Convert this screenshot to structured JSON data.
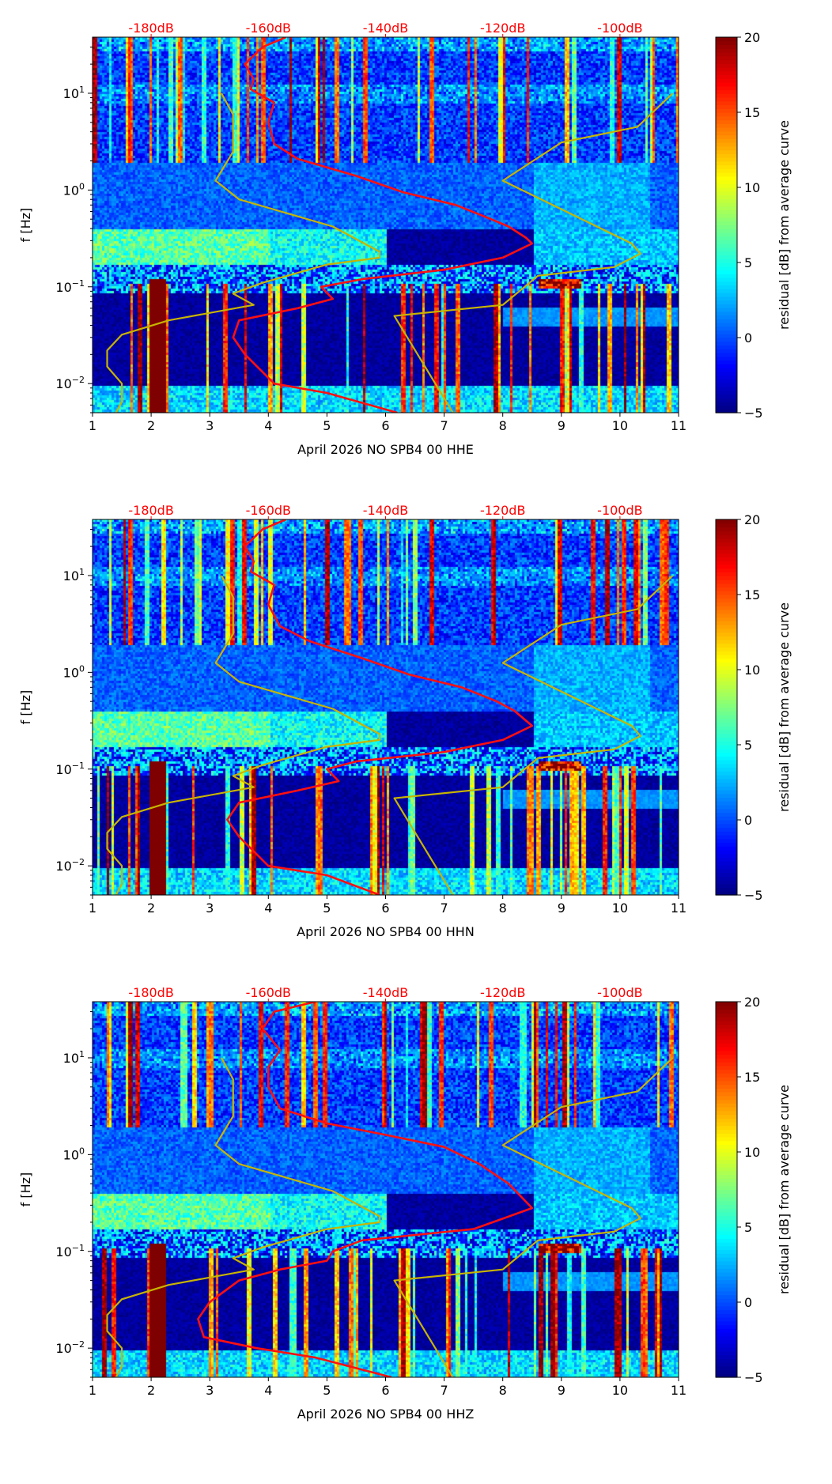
{
  "chart_data": [
    {
      "type": "heatmap",
      "xlabel": "April 2026 NO SPB4 00 HHE",
      "ylabel": "f [Hz]",
      "xlim": [
        1,
        11
      ],
      "ylim": [
        0.005,
        38
      ],
      "yscale": "log",
      "xticks": [
        1,
        2,
        3,
        4,
        5,
        6,
        7,
        8,
        9,
        10,
        11
      ],
      "xtick_labels": [
        "1",
        "2",
        "3",
        "4",
        "5",
        "6",
        "7",
        "8",
        "9",
        "10",
        "11"
      ],
      "yticks": [
        0.01,
        0.1,
        1,
        10
      ],
      "ytick_labels": [
        {
          "base": "10",
          "exp": "−2"
        },
        {
          "base": "10",
          "exp": "−1"
        },
        {
          "base": "10",
          "exp": "0"
        },
        {
          "base": "10",
          "exp": "1"
        }
      ],
      "top_axis": {
        "ticks": [
          2,
          4,
          6,
          8,
          10
        ],
        "labels": [
          "-180dB",
          "-160dB",
          "-140dB",
          "-120dB",
          "-100dB"
        ],
        "color": "#ff0000"
      },
      "colorbar": {
        "range": [
          -5,
          20
        ],
        "ticks": [
          -5,
          0,
          5,
          10,
          15,
          20
        ],
        "tick_labels": [
          "−5",
          "0",
          "5",
          "10",
          "15",
          "20"
        ],
        "label": "residual [dB] from average curve",
        "colormap": "jet"
      },
      "lines": {
        "red": {
          "color": "#ff1010",
          "points": [
            [
              4.3,
              38
            ],
            [
              3.9,
              30
            ],
            [
              3.6,
              20
            ],
            [
              3.75,
              14
            ],
            [
              3.7,
              11
            ],
            [
              4.1,
              8
            ],
            [
              4.0,
              5
            ],
            [
              4.1,
              3
            ],
            [
              4.5,
              2.1
            ],
            [
              5.5,
              1.4
            ],
            [
              6.3,
              0.95
            ],
            [
              7.2,
              0.7
            ],
            [
              7.8,
              0.5
            ],
            [
              8.1,
              0.42
            ],
            [
              8.4,
              0.32
            ],
            [
              8.5,
              0.28
            ],
            [
              8.0,
              0.2
            ],
            [
              7.0,
              0.15
            ],
            [
              5.6,
              0.12
            ],
            [
              4.9,
              0.1
            ],
            [
              5.1,
              0.075
            ],
            [
              4.5,
              0.06
            ],
            [
              3.5,
              0.045
            ],
            [
              3.4,
              0.03
            ],
            [
              3.6,
              0.02
            ],
            [
              4.1,
              0.01
            ],
            [
              5.0,
              0.008
            ],
            [
              6.2,
              0.005
            ]
          ]
        },
        "yellow_low": {
          "color": "#c8b400",
          "points": [
            [
              3.2,
              10
            ],
            [
              3.4,
              6
            ],
            [
              3.4,
              2.5
            ],
            [
              3.1,
              1.25
            ],
            [
              3.5,
              0.8
            ],
            [
              5.1,
              0.42
            ],
            [
              5.9,
              0.23
            ],
            [
              5.9,
              0.2
            ],
            [
              5.0,
              0.17
            ],
            [
              3.9,
              0.11
            ],
            [
              3.4,
              0.085
            ],
            [
              3.75,
              0.065
            ],
            [
              2.3,
              0.045
            ],
            [
              1.5,
              0.032
            ],
            [
              1.25,
              0.022
            ],
            [
              1.25,
              0.015
            ],
            [
              1.5,
              0.01
            ],
            [
              1.5,
              0.0065
            ],
            [
              1.4,
              0.005
            ]
          ]
        },
        "yellow_high": {
          "color": "#c8b400",
          "points": [
            [
              10.9,
              10
            ],
            [
              10.3,
              4.5
            ],
            [
              9.0,
              3.1
            ],
            [
              8.0,
              1.25
            ],
            [
              10.2,
              0.28
            ],
            [
              10.35,
              0.22
            ],
            [
              9.9,
              0.16
            ],
            [
              8.6,
              0.13
            ],
            [
              8.0,
              0.065
            ],
            [
              6.15,
              0.05
            ],
            [
              7.15,
              0.005
            ]
          ]
        }
      }
    },
    {
      "type": "heatmap",
      "xlabel": "April 2026 NO SPB4 00 HHN",
      "ylabel": "f [Hz]",
      "xlim": [
        1,
        11
      ],
      "ylim": [
        0.005,
        38
      ],
      "yscale": "log",
      "xticks": [
        1,
        2,
        3,
        4,
        5,
        6,
        7,
        8,
        9,
        10,
        11
      ],
      "xtick_labels": [
        "1",
        "2",
        "3",
        "4",
        "5",
        "6",
        "7",
        "8",
        "9",
        "10",
        "11"
      ],
      "yticks": [
        0.01,
        0.1,
        1,
        10
      ],
      "ytick_labels": [
        {
          "base": "10",
          "exp": "−2"
        },
        {
          "base": "10",
          "exp": "−1"
        },
        {
          "base": "10",
          "exp": "0"
        },
        {
          "base": "10",
          "exp": "1"
        }
      ],
      "top_axis": {
        "ticks": [
          2,
          4,
          6,
          8,
          10
        ],
        "labels": [
          "-180dB",
          "-160dB",
          "-140dB",
          "-120dB",
          "-100dB"
        ],
        "color": "#ff0000"
      },
      "colorbar": {
        "range": [
          -5,
          20
        ],
        "ticks": [
          -5,
          0,
          5,
          10,
          15,
          20
        ],
        "tick_labels": [
          "−5",
          "0",
          "5",
          "10",
          "15",
          "20"
        ],
        "label": "residual [dB] from average curve",
        "colormap": "jet"
      },
      "lines": {
        "red": {
          "color": "#ff1010",
          "points": [
            [
              4.3,
              38
            ],
            [
              3.9,
              30
            ],
            [
              3.6,
              20
            ],
            [
              3.75,
              14
            ],
            [
              3.7,
              11
            ],
            [
              4.1,
              8
            ],
            [
              4.0,
              5
            ],
            [
              4.2,
              3
            ],
            [
              4.7,
              2.1
            ],
            [
              5.6,
              1.4
            ],
            [
              6.4,
              0.95
            ],
            [
              7.3,
              0.7
            ],
            [
              7.9,
              0.5
            ],
            [
              8.2,
              0.4
            ],
            [
              8.5,
              0.28
            ],
            [
              8.0,
              0.2
            ],
            [
              7.0,
              0.15
            ],
            [
              5.5,
              0.12
            ],
            [
              5.0,
              0.1
            ],
            [
              5.2,
              0.075
            ],
            [
              4.5,
              0.06
            ],
            [
              3.5,
              0.045
            ],
            [
              3.3,
              0.03
            ],
            [
              3.5,
              0.02
            ],
            [
              4.0,
              0.01
            ],
            [
              5.0,
              0.008
            ],
            [
              5.9,
              0.005
            ]
          ]
        },
        "yellow_low": {
          "color": "#c8b400",
          "points": [
            [
              3.2,
              10
            ],
            [
              3.4,
              6
            ],
            [
              3.4,
              2.5
            ],
            [
              3.1,
              1.25
            ],
            [
              3.5,
              0.8
            ],
            [
              5.1,
              0.42
            ],
            [
              5.9,
              0.23
            ],
            [
              5.9,
              0.2
            ],
            [
              5.0,
              0.17
            ],
            [
              3.9,
              0.11
            ],
            [
              3.4,
              0.085
            ],
            [
              3.75,
              0.065
            ],
            [
              2.3,
              0.045
            ],
            [
              1.5,
              0.032
            ],
            [
              1.25,
              0.022
            ],
            [
              1.25,
              0.015
            ],
            [
              1.5,
              0.01
            ],
            [
              1.5,
              0.0065
            ],
            [
              1.4,
              0.005
            ]
          ]
        },
        "yellow_high": {
          "color": "#c8b400",
          "points": [
            [
              10.9,
              10
            ],
            [
              10.3,
              4.5
            ],
            [
              9.0,
              3.1
            ],
            [
              8.0,
              1.25
            ],
            [
              10.2,
              0.28
            ],
            [
              10.35,
              0.22
            ],
            [
              9.9,
              0.16
            ],
            [
              8.6,
              0.13
            ],
            [
              8.0,
              0.065
            ],
            [
              6.15,
              0.05
            ],
            [
              7.15,
              0.005
            ]
          ]
        }
      }
    },
    {
      "type": "heatmap",
      "xlabel": "April 2026 NO SPB4 00 HHZ",
      "ylabel": "f [Hz]",
      "xlim": [
        1,
        11
      ],
      "ylim": [
        0.005,
        38
      ],
      "yscale": "log",
      "xticks": [
        1,
        2,
        3,
        4,
        5,
        6,
        7,
        8,
        9,
        10,
        11
      ],
      "xtick_labels": [
        "1",
        "2",
        "3",
        "4",
        "5",
        "6",
        "7",
        "8",
        "9",
        "10",
        "11"
      ],
      "yticks": [
        0.01,
        0.1,
        1,
        10
      ],
      "ytick_labels": [
        {
          "base": "10",
          "exp": "−2"
        },
        {
          "base": "10",
          "exp": "−1"
        },
        {
          "base": "10",
          "exp": "0"
        },
        {
          "base": "10",
          "exp": "1"
        }
      ],
      "top_axis": {
        "ticks": [
          2,
          4,
          6,
          8,
          10
        ],
        "labels": [
          "-180dB",
          "-160dB",
          "-140dB",
          "-120dB",
          "-100dB"
        ],
        "color": "#ff0000"
      },
      "colorbar": {
        "range": [
          -5,
          20
        ],
        "ticks": [
          -5,
          0,
          5,
          10,
          15,
          20
        ],
        "tick_labels": [
          "−5",
          "0",
          "5",
          "10",
          "15",
          "20"
        ],
        "label": "residual [dB] from average curve",
        "colormap": "jet"
      },
      "lines": {
        "red": {
          "color": "#ff1010",
          "points": [
            [
              4.8,
              38
            ],
            [
              4.1,
              30
            ],
            [
              3.9,
              20
            ],
            [
              4.2,
              12
            ],
            [
              4.0,
              8
            ],
            [
              4.0,
              5
            ],
            [
              4.2,
              3
            ],
            [
              5.0,
              2.1
            ],
            [
              6.0,
              1.6
            ],
            [
              7.0,
              1.2
            ],
            [
              7.6,
              0.8
            ],
            [
              8.1,
              0.5
            ],
            [
              8.5,
              0.28
            ],
            [
              7.5,
              0.17
            ],
            [
              5.6,
              0.13
            ],
            [
              5.1,
              0.1
            ],
            [
              5.0,
              0.08
            ],
            [
              4.2,
              0.065
            ],
            [
              3.5,
              0.05
            ],
            [
              3.0,
              0.03
            ],
            [
              2.8,
              0.02
            ],
            [
              2.9,
              0.013
            ],
            [
              3.8,
              0.01
            ],
            [
              4.8,
              0.008
            ],
            [
              6.1,
              0.005
            ]
          ]
        },
        "yellow_low": {
          "color": "#c8b400",
          "points": [
            [
              3.2,
              10
            ],
            [
              3.4,
              6
            ],
            [
              3.4,
              2.5
            ],
            [
              3.1,
              1.25
            ],
            [
              3.5,
              0.8
            ],
            [
              5.1,
              0.42
            ],
            [
              5.9,
              0.23
            ],
            [
              5.9,
              0.2
            ],
            [
              5.0,
              0.17
            ],
            [
              3.9,
              0.11
            ],
            [
              3.4,
              0.085
            ],
            [
              3.75,
              0.065
            ],
            [
              2.3,
              0.045
            ],
            [
              1.5,
              0.032
            ],
            [
              1.25,
              0.022
            ],
            [
              1.25,
              0.015
            ],
            [
              1.5,
              0.01
            ],
            [
              1.5,
              0.0065
            ],
            [
              1.4,
              0.005
            ]
          ]
        },
        "yellow_high": {
          "color": "#c8b400",
          "points": [
            [
              10.9,
              10
            ],
            [
              10.3,
              4.5
            ],
            [
              9.0,
              3.1
            ],
            [
              8.0,
              1.25
            ],
            [
              10.2,
              0.28
            ],
            [
              10.35,
              0.22
            ],
            [
              9.9,
              0.16
            ],
            [
              8.6,
              0.13
            ],
            [
              8.0,
              0.065
            ],
            [
              6.15,
              0.05
            ],
            [
              7.15,
              0.005
            ]
          ]
        }
      }
    }
  ]
}
